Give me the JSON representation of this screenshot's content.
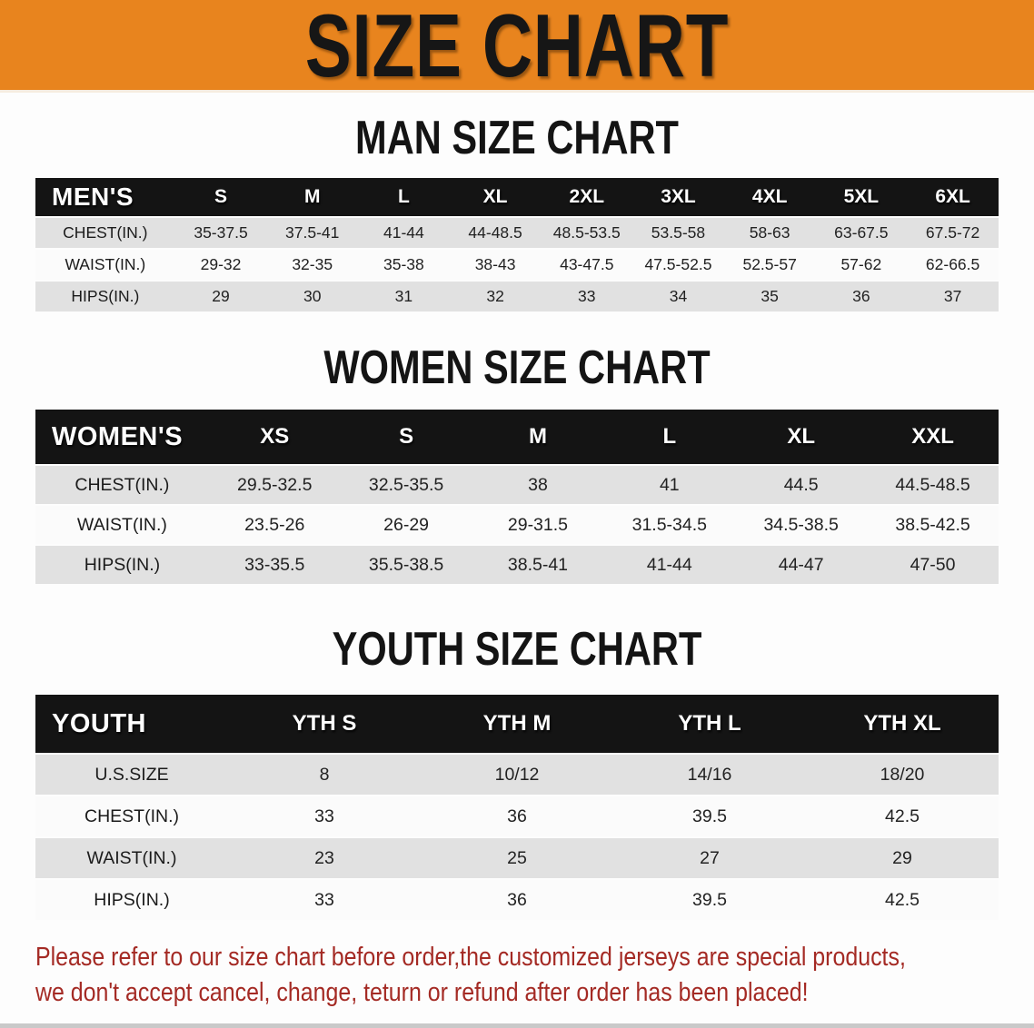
{
  "banner": {
    "title": "SIZE CHART",
    "background_color": "#e8841e",
    "text_color": "#161616"
  },
  "colors": {
    "header_band": "#141414",
    "row_gray": "#e1e1e1",
    "row_white": "#fbfbfb",
    "disclaimer_red": "#a42a24"
  },
  "sections": [
    {
      "heading": "MAN SIZE CHART",
      "table": {
        "corner_label": "MEN'S",
        "columns": [
          "S",
          "M",
          "L",
          "XL",
          "2XL",
          "3XL",
          "4XL",
          "5XL",
          "6XL"
        ],
        "rows": [
          {
            "label": "CHEST(IN.)",
            "values": [
              "35-37.5",
              "37.5-41",
              "41-44",
              "44-48.5",
              "48.5-53.5",
              "53.5-58",
              "58-63",
              "63-67.5",
              "67.5-72"
            ]
          },
          {
            "label": "WAIST(IN.)",
            "values": [
              "29-32",
              "32-35",
              "35-38",
              "38-43",
              "43-47.5",
              "47.5-52.5",
              "52.5-57",
              "57-62",
              "62-66.5"
            ]
          },
          {
            "label": "HIPS(IN.)",
            "values": [
              "29",
              "30",
              "31",
              "32",
              "33",
              "34",
              "35",
              "36",
              "37"
            ]
          }
        ]
      }
    },
    {
      "heading": "WOMEN SIZE CHART",
      "table": {
        "corner_label": "WOMEN'S",
        "columns": [
          "XS",
          "S",
          "M",
          "L",
          "XL",
          "XXL"
        ],
        "rows": [
          {
            "label": "CHEST(IN.)",
            "values": [
              "29.5-32.5",
              "32.5-35.5",
              "38",
              "41",
              "44.5",
              "44.5-48.5"
            ]
          },
          {
            "label": "WAIST(IN.)",
            "values": [
              "23.5-26",
              "26-29",
              "29-31.5",
              "31.5-34.5",
              "34.5-38.5",
              "38.5-42.5"
            ]
          },
          {
            "label": "HIPS(IN.)",
            "values": [
              "33-35.5",
              "35.5-38.5",
              "38.5-41",
              "41-44",
              "44-47",
              "47-50"
            ]
          }
        ]
      }
    },
    {
      "heading": "YOUTH SIZE CHART",
      "table": {
        "corner_label": "YOUTH",
        "columns": [
          "YTH S",
          "YTH M",
          "YTH L",
          "YTH XL"
        ],
        "rows": [
          {
            "label": "U.S.SIZE",
            "values": [
              "8",
              "10/12",
              "14/16",
              "18/20"
            ]
          },
          {
            "label": "CHEST(IN.)",
            "values": [
              "33",
              "36",
              "39.5",
              "42.5"
            ]
          },
          {
            "label": "WAIST(IN.)",
            "values": [
              "23",
              "25",
              "27",
              "29"
            ]
          },
          {
            "label": "HIPS(IN.)",
            "values": [
              "33",
              "36",
              "39.5",
              "42.5"
            ]
          }
        ]
      }
    }
  ],
  "disclaimer": {
    "lines": [
      "Please refer to our size chart before order,the customized jerseys are special products,",
      "we don't accept cancel, change, teturn or refund after order has been placed!"
    ]
  }
}
